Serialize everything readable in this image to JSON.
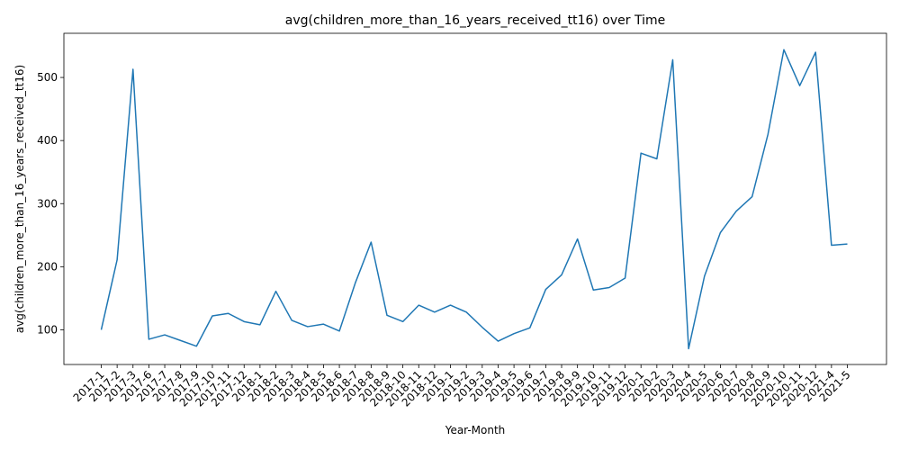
{
  "chart_data": {
    "type": "line",
    "title": "avg(children_more_than_16_years_received_tt16) over Time",
    "xlabel": "Year-Month",
    "ylabel": "avg(children_more_than_16_years_received_tt16)",
    "ylim": [
      45,
      570
    ],
    "yticks": [
      100,
      200,
      300,
      400,
      500
    ],
    "grid": false,
    "colors": {
      "line": "#1f77b4"
    },
    "categories": [
      "2017-1",
      "2017-2",
      "2017-3",
      "2017-6",
      "2017-7",
      "2017-8",
      "2017-9",
      "2017-10",
      "2017-11",
      "2017-12",
      "2018-1",
      "2018-2",
      "2018-3",
      "2018-4",
      "2018-5",
      "2018-6",
      "2018-7",
      "2018-8",
      "2018-9",
      "2018-10",
      "2018-11",
      "2018-12",
      "2019-1",
      "2019-2",
      "2019-3",
      "2019-4",
      "2019-5",
      "2019-6",
      "2019-7",
      "2019-8",
      "2019-9",
      "2019-10",
      "2019-11",
      "2019-12",
      "2020-1",
      "2020-2",
      "2020-3",
      "2020-4",
      "2020-5",
      "2020-6",
      "2020-7",
      "2020-8",
      "2020-9",
      "2020-10",
      "2020-11",
      "2020-12",
      "2021-4",
      "2021-5"
    ],
    "series": [
      {
        "values": [
          100,
          211,
          513,
          85,
          92,
          83,
          74,
          122,
          126,
          113,
          108,
          161,
          115,
          105,
          109,
          98,
          174,
          239,
          123,
          113,
          139,
          128,
          139,
          128,
          104,
          82,
          94,
          103,
          164,
          187,
          244,
          163,
          167,
          182,
          380,
          371,
          528,
          70,
          185,
          254,
          288,
          311,
          410,
          544,
          487,
          540,
          234,
          236
        ]
      }
    ]
  }
}
